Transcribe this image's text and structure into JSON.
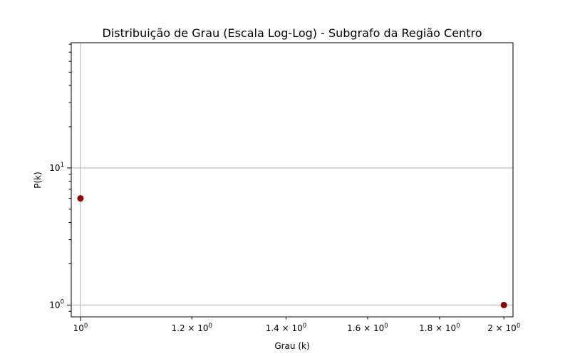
{
  "chart_data": {
    "type": "scatter",
    "title": "Distribuição de Grau (Escala Log-Log) - Subgrafo da Região Centro",
    "xlabel": "Grau (k)",
    "ylabel": "P(k)",
    "xscale": "log",
    "yscale": "log",
    "xlim": [
      0.985,
      2.03
    ],
    "ylim": [
      0.82,
      82
    ],
    "grid": true,
    "marker_color": "#8b0000",
    "points": [
      {
        "x": 1,
        "y": 6
      },
      {
        "x": 2,
        "y": 1
      }
    ],
    "x_ticks": [
      {
        "value": 1.0,
        "mantissa": "",
        "base": "10",
        "exp": "0"
      },
      {
        "value": 1.2,
        "mantissa": "1.2 × ",
        "base": "10",
        "exp": "0"
      },
      {
        "value": 1.4,
        "mantissa": "1.4 × ",
        "base": "10",
        "exp": "0"
      },
      {
        "value": 1.6,
        "mantissa": "1.6 × ",
        "base": "10",
        "exp": "0"
      },
      {
        "value": 1.8,
        "mantissa": "1.8 × ",
        "base": "10",
        "exp": "0"
      },
      {
        "value": 2.0,
        "mantissa": "2 × ",
        "base": "10",
        "exp": "0"
      }
    ],
    "y_ticks": [
      {
        "value": 1,
        "base": "10",
        "exp": "0"
      },
      {
        "value": 10,
        "base": "10",
        "exp": "1"
      }
    ]
  }
}
